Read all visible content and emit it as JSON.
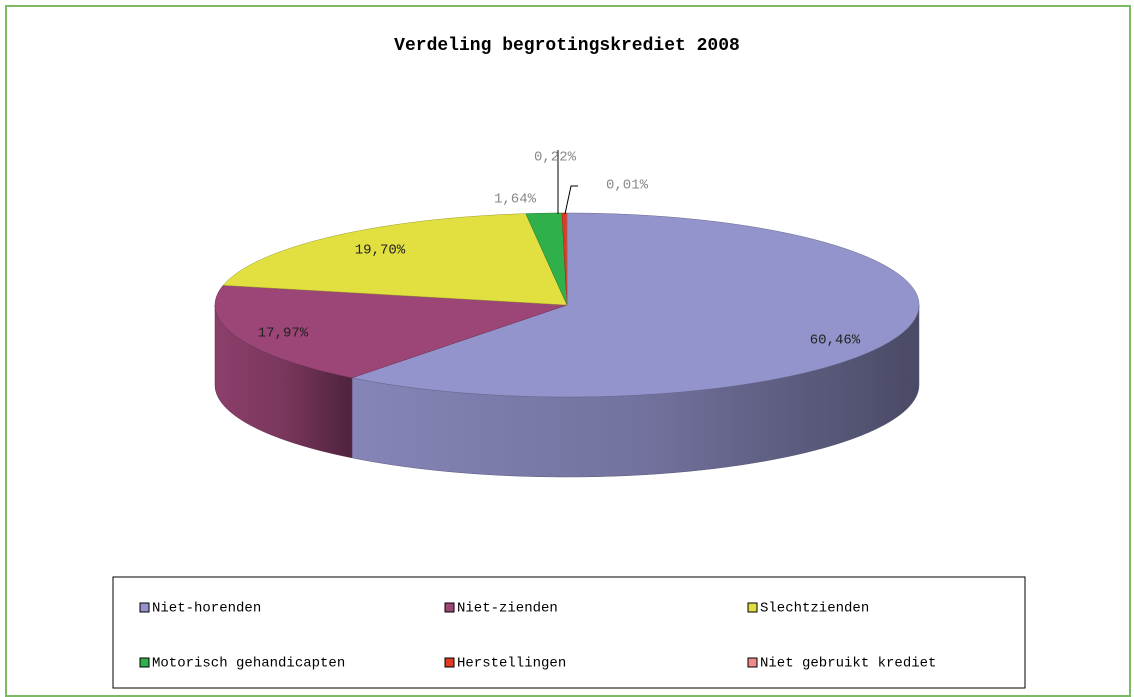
{
  "chart_data": {
    "type": "pie",
    "title": "Verdeling begrotingskrediet 2008",
    "categories": [
      "Niet-horenden",
      "Niet-zienden",
      "Slechtzienden",
      "Motorisch gehandicapten",
      "Herstellingen",
      "Niet gebruikt krediet"
    ],
    "values": [
      60.46,
      17.97,
      19.7,
      1.64,
      0.22,
      0.01
    ],
    "value_labels": [
      "60,46%",
      "17,97%",
      "19,70%",
      "1,64%",
      "0,22%",
      "0,01%"
    ],
    "colors": [
      "#9494cc",
      "#9c4677",
      "#e2e040",
      "#2fb04a",
      "#e03a22",
      "#f08a8a"
    ],
    "legend": "bottom"
  }
}
